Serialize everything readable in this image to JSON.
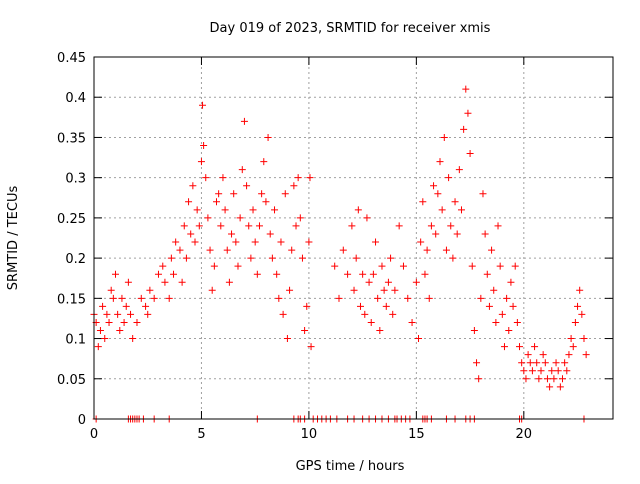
{
  "chart_data": {
    "type": "scatter",
    "title": "Day 019 of 2023, SRMTID for receiver xmis",
    "xlabel": "GPS time / hours",
    "ylabel": "SRMTID / TECUs",
    "xlim": [
      0,
      24.15
    ],
    "ylim": [
      0,
      0.45
    ],
    "xticks": [
      0,
      5,
      10,
      15,
      20
    ],
    "xtick_labels": [
      "0",
      "5",
      "10",
      "15",
      "20"
    ],
    "yticks": [
      0,
      0.05,
      0.1,
      0.15,
      0.2,
      0.25,
      0.3,
      0.35,
      0.4,
      0.45
    ],
    "ytick_labels": [
      "0",
      "0.05",
      "0.1",
      "0.15",
      "0.2",
      "0.25",
      "0.3",
      "0.35",
      "0.4",
      "0.45"
    ],
    "grid": true,
    "marker": "+",
    "color": "#ff0000",
    "series": [
      {
        "name": "SRMTID",
        "points": [
          [
            0.0,
            0.13
          ],
          [
            0.1,
            0.12
          ],
          [
            0.2,
            0.09
          ],
          [
            0.3,
            0.11
          ],
          [
            0.4,
            0.14
          ],
          [
            0.5,
            0.1
          ],
          [
            0.6,
            0.13
          ],
          [
            0.7,
            0.12
          ],
          [
            0.8,
            0.16
          ],
          [
            0.9,
            0.15
          ],
          [
            1.0,
            0.18
          ],
          [
            1.1,
            0.13
          ],
          [
            1.2,
            0.11
          ],
          [
            1.3,
            0.15
          ],
          [
            1.4,
            0.12
          ],
          [
            1.5,
            0.14
          ],
          [
            1.6,
            0.17
          ],
          [
            1.7,
            0.13
          ],
          [
            1.8,
            0.1
          ],
          [
            2.0,
            0.12
          ],
          [
            2.2,
            0.15
          ],
          [
            2.4,
            0.14
          ],
          [
            2.5,
            0.13
          ],
          [
            2.6,
            0.16
          ],
          [
            2.8,
            0.15
          ],
          [
            3.0,
            0.18
          ],
          [
            3.2,
            0.19
          ],
          [
            3.3,
            0.17
          ],
          [
            3.5,
            0.15
          ],
          [
            3.6,
            0.2
          ],
          [
            3.7,
            0.18
          ],
          [
            3.8,
            0.22
          ],
          [
            4.0,
            0.21
          ],
          [
            4.1,
            0.17
          ],
          [
            4.2,
            0.24
          ],
          [
            4.3,
            0.2
          ],
          [
            4.4,
            0.27
          ],
          [
            4.5,
            0.23
          ],
          [
            4.6,
            0.29
          ],
          [
            4.7,
            0.22
          ],
          [
            4.8,
            0.26
          ],
          [
            4.9,
            0.24
          ],
          [
            5.0,
            0.32
          ],
          [
            5.05,
            0.39
          ],
          [
            5.1,
            0.34
          ],
          [
            5.2,
            0.3
          ],
          [
            5.3,
            0.25
          ],
          [
            5.4,
            0.21
          ],
          [
            5.5,
            0.16
          ],
          [
            5.6,
            0.19
          ],
          [
            5.7,
            0.27
          ],
          [
            5.8,
            0.28
          ],
          [
            5.9,
            0.24
          ],
          [
            6.0,
            0.3
          ],
          [
            6.1,
            0.26
          ],
          [
            6.2,
            0.21
          ],
          [
            6.3,
            0.17
          ],
          [
            6.4,
            0.23
          ],
          [
            6.5,
            0.28
          ],
          [
            6.6,
            0.22
          ],
          [
            6.7,
            0.19
          ],
          [
            6.8,
            0.25
          ],
          [
            6.9,
            0.31
          ],
          [
            7.0,
            0.37
          ],
          [
            7.1,
            0.29
          ],
          [
            7.2,
            0.24
          ],
          [
            7.3,
            0.2
          ],
          [
            7.4,
            0.26
          ],
          [
            7.5,
            0.22
          ],
          [
            7.6,
            0.18
          ],
          [
            7.7,
            0.24
          ],
          [
            7.8,
            0.28
          ],
          [
            7.9,
            0.32
          ],
          [
            8.0,
            0.27
          ],
          [
            8.1,
            0.35
          ],
          [
            8.2,
            0.23
          ],
          [
            8.3,
            0.2
          ],
          [
            8.4,
            0.26
          ],
          [
            8.5,
            0.18
          ],
          [
            8.6,
            0.15
          ],
          [
            8.7,
            0.22
          ],
          [
            8.8,
            0.13
          ],
          [
            8.9,
            0.28
          ],
          [
            9.0,
            0.1
          ],
          [
            9.1,
            0.16
          ],
          [
            9.2,
            0.21
          ],
          [
            9.3,
            0.29
          ],
          [
            9.4,
            0.24
          ],
          [
            9.5,
            0.3
          ],
          [
            9.6,
            0.25
          ],
          [
            9.7,
            0.2
          ],
          [
            9.8,
            0.11
          ],
          [
            9.9,
            0.14
          ],
          [
            10.0,
            0.22
          ],
          [
            10.05,
            0.3
          ],
          [
            10.1,
            0.09
          ],
          [
            11.2,
            0.19
          ],
          [
            11.4,
            0.15
          ],
          [
            11.6,
            0.21
          ],
          [
            11.8,
            0.18
          ],
          [
            12.0,
            0.24
          ],
          [
            12.1,
            0.16
          ],
          [
            12.2,
            0.2
          ],
          [
            12.3,
            0.26
          ],
          [
            12.4,
            0.14
          ],
          [
            12.5,
            0.18
          ],
          [
            12.6,
            0.13
          ],
          [
            12.7,
            0.25
          ],
          [
            12.8,
            0.17
          ],
          [
            12.9,
            0.12
          ],
          [
            13.0,
            0.18
          ],
          [
            13.1,
            0.22
          ],
          [
            13.2,
            0.15
          ],
          [
            13.3,
            0.11
          ],
          [
            13.4,
            0.19
          ],
          [
            13.5,
            0.16
          ],
          [
            13.6,
            0.14
          ],
          [
            13.7,
            0.17
          ],
          [
            13.8,
            0.2
          ],
          [
            13.9,
            0.13
          ],
          [
            14.0,
            0.16
          ],
          [
            14.2,
            0.24
          ],
          [
            14.4,
            0.19
          ],
          [
            14.6,
            0.15
          ],
          [
            14.8,
            0.12
          ],
          [
            15.0,
            0.17
          ],
          [
            15.1,
            0.1
          ],
          [
            15.2,
            0.22
          ],
          [
            15.3,
            0.27
          ],
          [
            15.4,
            0.18
          ],
          [
            15.5,
            0.21
          ],
          [
            15.6,
            0.15
          ],
          [
            15.7,
            0.24
          ],
          [
            15.8,
            0.29
          ],
          [
            15.9,
            0.23
          ],
          [
            16.0,
            0.28
          ],
          [
            16.1,
            0.32
          ],
          [
            16.2,
            0.26
          ],
          [
            16.3,
            0.35
          ],
          [
            16.4,
            0.21
          ],
          [
            16.5,
            0.3
          ],
          [
            16.6,
            0.24
          ],
          [
            16.7,
            0.2
          ],
          [
            16.8,
            0.27
          ],
          [
            16.9,
            0.23
          ],
          [
            17.0,
            0.31
          ],
          [
            17.1,
            0.26
          ],
          [
            17.2,
            0.36
          ],
          [
            17.3,
            0.41
          ],
          [
            17.4,
            0.38
          ],
          [
            17.5,
            0.33
          ],
          [
            17.6,
            0.19
          ],
          [
            17.7,
            0.11
          ],
          [
            17.8,
            0.07
          ],
          [
            17.9,
            0.05
          ],
          [
            18.0,
            0.15
          ],
          [
            18.1,
            0.28
          ],
          [
            18.2,
            0.23
          ],
          [
            18.3,
            0.18
          ],
          [
            18.4,
            0.14
          ],
          [
            18.5,
            0.21
          ],
          [
            18.6,
            0.16
          ],
          [
            18.7,
            0.12
          ],
          [
            18.8,
            0.24
          ],
          [
            18.9,
            0.19
          ],
          [
            19.0,
            0.13
          ],
          [
            19.1,
            0.09
          ],
          [
            19.2,
            0.15
          ],
          [
            19.3,
            0.11
          ],
          [
            19.4,
            0.17
          ],
          [
            19.5,
            0.14
          ],
          [
            19.6,
            0.19
          ],
          [
            19.7,
            0.12
          ],
          [
            19.8,
            0.09
          ],
          [
            19.9,
            0.07
          ],
          [
            20.0,
            0.06
          ],
          [
            20.1,
            0.05
          ],
          [
            20.2,
            0.08
          ],
          [
            20.3,
            0.07
          ],
          [
            20.4,
            0.06
          ],
          [
            20.5,
            0.09
          ],
          [
            20.6,
            0.07
          ],
          [
            20.7,
            0.05
          ],
          [
            20.8,
            0.06
          ],
          [
            20.9,
            0.08
          ],
          [
            21.0,
            0.07
          ],
          [
            21.1,
            0.05
          ],
          [
            21.2,
            0.04
          ],
          [
            21.3,
            0.06
          ],
          [
            21.4,
            0.05
          ],
          [
            21.5,
            0.07
          ],
          [
            21.6,
            0.06
          ],
          [
            21.7,
            0.04
          ],
          [
            21.8,
            0.05
          ],
          [
            21.9,
            0.07
          ],
          [
            22.0,
            0.06
          ],
          [
            22.1,
            0.08
          ],
          [
            22.2,
            0.1
          ],
          [
            22.3,
            0.09
          ],
          [
            22.4,
            0.12
          ],
          [
            22.5,
            0.14
          ],
          [
            22.6,
            0.16
          ],
          [
            22.7,
            0.13
          ],
          [
            22.8,
            0.1
          ],
          [
            22.9,
            0.08
          ],
          [
            0.1,
            0.0
          ],
          [
            1.6,
            0.0
          ],
          [
            1.7,
            0.0
          ],
          [
            1.8,
            0.0
          ],
          [
            1.9,
            0.0
          ],
          [
            2.0,
            0.0
          ],
          [
            2.1,
            0.0
          ],
          [
            2.3,
            0.0
          ],
          [
            2.8,
            0.0
          ],
          [
            3.5,
            0.0
          ],
          [
            7.6,
            0.0
          ],
          [
            9.3,
            0.0
          ],
          [
            9.5,
            0.0
          ],
          [
            9.6,
            0.0
          ],
          [
            9.8,
            0.0
          ],
          [
            10.2,
            0.0
          ],
          [
            10.4,
            0.0
          ],
          [
            10.6,
            0.0
          ],
          [
            10.8,
            0.0
          ],
          [
            11.0,
            0.0
          ],
          [
            11.3,
            0.0
          ],
          [
            11.8,
            0.0
          ],
          [
            12.1,
            0.0
          ],
          [
            12.5,
            0.0
          ],
          [
            12.8,
            0.0
          ],
          [
            13.1,
            0.0
          ],
          [
            13.4,
            0.0
          ],
          [
            13.7,
            0.0
          ],
          [
            14.0,
            0.0
          ],
          [
            14.1,
            0.0
          ],
          [
            14.3,
            0.0
          ],
          [
            14.5,
            0.0
          ],
          [
            14.7,
            0.0
          ],
          [
            15.3,
            0.0
          ],
          [
            15.4,
            0.0
          ],
          [
            15.5,
            0.0
          ],
          [
            15.7,
            0.0
          ],
          [
            16.4,
            0.0
          ],
          [
            16.8,
            0.0
          ],
          [
            17.3,
            0.0
          ],
          [
            17.5,
            0.0
          ],
          [
            17.7,
            0.0
          ],
          [
            19.8,
            0.0
          ],
          [
            19.9,
            0.0
          ],
          [
            22.8,
            0.0
          ]
        ]
      }
    ]
  }
}
